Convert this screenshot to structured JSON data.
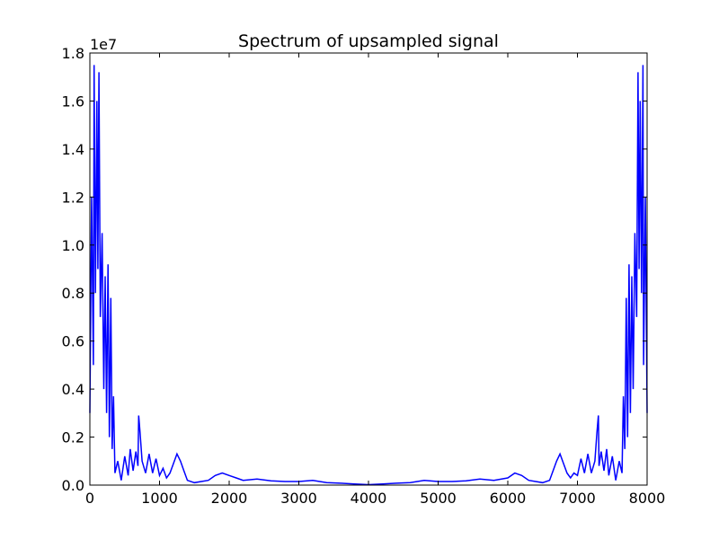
{
  "chart_data": {
    "type": "line",
    "title": "Spectrum of upsampled signal",
    "xlabel": "",
    "ylabel": "",
    "y_offset_label": "1e7",
    "xlim": [
      0,
      8000
    ],
    "ylim": [
      0,
      1.8
    ],
    "x_ticks": [
      0,
      1000,
      2000,
      3000,
      4000,
      5000,
      6000,
      7000,
      8000
    ],
    "x_tick_labels": [
      "0",
      "1000",
      "2000",
      "3000",
      "4000",
      "5000",
      "6000",
      "7000",
      "8000"
    ],
    "y_ticks": [
      0.0,
      0.2,
      0.4,
      0.6,
      0.8,
      1.0,
      1.2,
      1.4,
      1.6,
      1.8
    ],
    "y_tick_labels": [
      "0.0",
      "0.2",
      "0.4",
      "0.6",
      "0.8",
      "1.0",
      "1.2",
      "1.4",
      "1.6",
      "1.8"
    ],
    "grid": false,
    "legend": "none",
    "series": [
      {
        "color": "#0000ff",
        "points": [
          [
            0,
            0.3
          ],
          [
            25,
            1.2
          ],
          [
            50,
            0.5
          ],
          [
            60,
            1.75
          ],
          [
            80,
            0.8
          ],
          [
            100,
            1.6
          ],
          [
            115,
            0.9
          ],
          [
            130,
            1.72
          ],
          [
            150,
            0.7
          ],
          [
            175,
            1.05
          ],
          [
            200,
            0.4
          ],
          [
            220,
            0.87
          ],
          [
            240,
            0.3
          ],
          [
            260,
            0.92
          ],
          [
            280,
            0.2
          ],
          [
            300,
            0.78
          ],
          [
            320,
            0.15
          ],
          [
            340,
            0.37
          ],
          [
            360,
            0.05
          ],
          [
            400,
            0.1
          ],
          [
            450,
            0.02
          ],
          [
            500,
            0.12
          ],
          [
            550,
            0.04
          ],
          [
            580,
            0.15
          ],
          [
            620,
            0.06
          ],
          [
            660,
            0.14
          ],
          [
            690,
            0.08
          ],
          [
            700,
            0.29
          ],
          [
            720,
            0.22
          ],
          [
            750,
            0.1
          ],
          [
            800,
            0.05
          ],
          [
            850,
            0.13
          ],
          [
            900,
            0.05
          ],
          [
            950,
            0.11
          ],
          [
            1000,
            0.04
          ],
          [
            1050,
            0.07
          ],
          [
            1100,
            0.03
          ],
          [
            1150,
            0.05
          ],
          [
            1200,
            0.09
          ],
          [
            1250,
            0.13
          ],
          [
            1300,
            0.1
          ],
          [
            1350,
            0.06
          ],
          [
            1400,
            0.02
          ],
          [
            1500,
            0.01
          ],
          [
            1600,
            0.015
          ],
          [
            1700,
            0.02
          ],
          [
            1800,
            0.04
          ],
          [
            1900,
            0.05
          ],
          [
            2000,
            0.04
          ],
          [
            2100,
            0.03
          ],
          [
            2200,
            0.02
          ],
          [
            2400,
            0.025
          ],
          [
            2600,
            0.018
          ],
          [
            2800,
            0.015
          ],
          [
            3000,
            0.015
          ],
          [
            3200,
            0.02
          ],
          [
            3400,
            0.01
          ],
          [
            3600,
            0.008
          ],
          [
            3800,
            0.005
          ],
          [
            4000,
            0.002
          ],
          [
            4200,
            0.005
          ],
          [
            4400,
            0.008
          ],
          [
            4600,
            0.01
          ],
          [
            4800,
            0.02
          ],
          [
            5000,
            0.015
          ],
          [
            5200,
            0.015
          ],
          [
            5400,
            0.018
          ],
          [
            5600,
            0.025
          ],
          [
            5800,
            0.02
          ],
          [
            6000,
            0.03
          ],
          [
            6100,
            0.05
          ],
          [
            6200,
            0.04
          ],
          [
            6300,
            0.02
          ],
          [
            6400,
            0.015
          ],
          [
            6500,
            0.01
          ],
          [
            6600,
            0.02
          ],
          [
            6650,
            0.06
          ],
          [
            6700,
            0.1
          ],
          [
            6750,
            0.13
          ],
          [
            6800,
            0.09
          ],
          [
            6850,
            0.05
          ],
          [
            6900,
            0.03
          ],
          [
            6950,
            0.05
          ],
          [
            7000,
            0.04
          ],
          [
            7050,
            0.11
          ],
          [
            7100,
            0.05
          ],
          [
            7150,
            0.13
          ],
          [
            7200,
            0.05
          ],
          [
            7250,
            0.1
          ],
          [
            7280,
            0.22
          ],
          [
            7300,
            0.29
          ],
          [
            7310,
            0.08
          ],
          [
            7340,
            0.14
          ],
          [
            7380,
            0.06
          ],
          [
            7420,
            0.15
          ],
          [
            7450,
            0.04
          ],
          [
            7500,
            0.12
          ],
          [
            7550,
            0.02
          ],
          [
            7600,
            0.1
          ],
          [
            7640,
            0.05
          ],
          [
            7660,
            0.37
          ],
          [
            7680,
            0.15
          ],
          [
            7700,
            0.78
          ],
          [
            7720,
            0.2
          ],
          [
            7740,
            0.92
          ],
          [
            7760,
            0.3
          ],
          [
            7780,
            0.87
          ],
          [
            7800,
            0.4
          ],
          [
            7825,
            1.05
          ],
          [
            7850,
            0.7
          ],
          [
            7870,
            1.72
          ],
          [
            7885,
            0.9
          ],
          [
            7900,
            1.6
          ],
          [
            7920,
            0.8
          ],
          [
            7940,
            1.75
          ],
          [
            7950,
            0.5
          ],
          [
            7975,
            1.2
          ],
          [
            8000,
            0.3
          ]
        ]
      }
    ]
  }
}
